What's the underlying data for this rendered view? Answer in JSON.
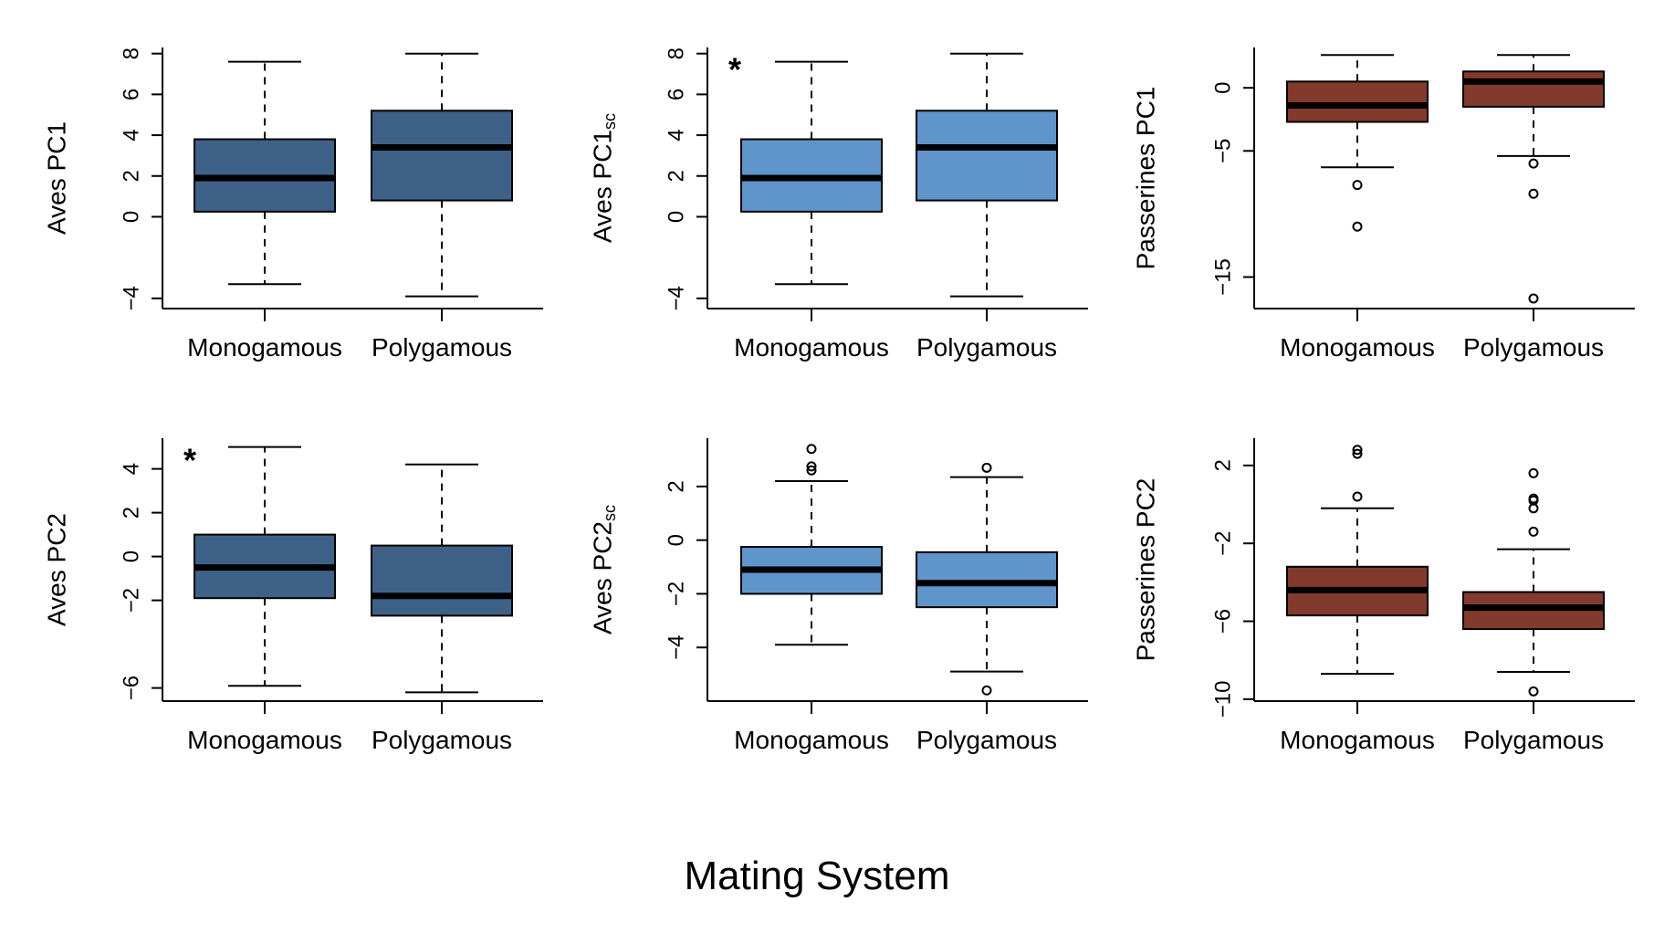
{
  "figure": {
    "xlabel": "Mating System"
  },
  "chart_data": [
    {
      "type": "boxplot",
      "ylabel": "Aves PC1",
      "ylabel_sub": "",
      "significance": "",
      "fill": "#3e6188",
      "ylim": [
        -4.5,
        8.3
      ],
      "yticks": [
        8,
        6,
        4,
        2,
        0,
        -4
      ],
      "categories": [
        "Monogamous",
        "Polygamous"
      ],
      "boxes": [
        {
          "whisker_low": -3.3,
          "q1": 0.25,
          "median": 1.9,
          "q3": 3.8,
          "whisker_high": 7.6,
          "outliers": []
        },
        {
          "whisker_low": -3.9,
          "q1": 0.8,
          "median": 3.4,
          "q3": 5.2,
          "whisker_high": 8.0,
          "outliers": []
        }
      ]
    },
    {
      "type": "boxplot",
      "ylabel": "Aves PC1",
      "ylabel_sub": "sc",
      "significance": "*",
      "fill": "#5f95cb",
      "ylim": [
        -4.5,
        8.3
      ],
      "yticks": [
        8,
        6,
        4,
        2,
        0,
        -4
      ],
      "categories": [
        "Monogamous",
        "Polygamous"
      ],
      "boxes": [
        {
          "whisker_low": -3.3,
          "q1": 0.25,
          "median": 1.9,
          "q3": 3.8,
          "whisker_high": 7.6,
          "outliers": []
        },
        {
          "whisker_low": -3.9,
          "q1": 0.8,
          "median": 3.4,
          "q3": 5.2,
          "whisker_high": 8.0,
          "outliers": []
        }
      ]
    },
    {
      "type": "boxplot",
      "ylabel": "Passerines PC1",
      "ylabel_sub": "",
      "significance": "",
      "fill": "#823a2c",
      "ylim": [
        -17.5,
        3.2
      ],
      "yticks": [
        0,
        -5,
        -15
      ],
      "categories": [
        "Monogamous",
        "Polygamous"
      ],
      "boxes": [
        {
          "whisker_low": -6.3,
          "q1": -2.7,
          "median": -1.4,
          "q3": 0.5,
          "whisker_high": 2.6,
          "outliers": [
            -7.7,
            -11.0
          ]
        },
        {
          "whisker_low": -5.4,
          "q1": -1.5,
          "median": 0.5,
          "q3": 1.3,
          "whisker_high": 2.6,
          "outliers": [
            -6.0,
            -8.4,
            -16.7
          ]
        }
      ]
    },
    {
      "type": "boxplot",
      "ylabel": "Aves PC2",
      "ylabel_sub": "",
      "significance": "*",
      "fill": "#3e6188",
      "ylim": [
        -6.6,
        5.4
      ],
      "yticks": [
        4,
        2,
        0,
        -2,
        -6
      ],
      "categories": [
        "Monogamous",
        "Polygamous"
      ],
      "boxes": [
        {
          "whisker_low": -5.9,
          "q1": -1.9,
          "median": -0.5,
          "q3": 1.0,
          "whisker_high": 5.0,
          "outliers": []
        },
        {
          "whisker_low": -6.2,
          "q1": -2.7,
          "median": -1.8,
          "q3": 0.5,
          "whisker_high": 4.2,
          "outliers": []
        }
      ]
    },
    {
      "type": "boxplot",
      "ylabel": "Aves PC2",
      "ylabel_sub": "sc",
      "significance": "",
      "fill": "#5f95cb",
      "ylim": [
        -6.0,
        3.8
      ],
      "yticks": [
        2,
        0,
        -2,
        -4
      ],
      "categories": [
        "Monogamous",
        "Polygamous"
      ],
      "boxes": [
        {
          "whisker_low": -3.9,
          "q1": -2.0,
          "median": -1.1,
          "q3": -0.25,
          "whisker_high": 2.2,
          "outliers": [
            2.6,
            2.75,
            3.4
          ]
        },
        {
          "whisker_low": -4.9,
          "q1": -2.5,
          "median": -1.6,
          "q3": -0.45,
          "whisker_high": 2.35,
          "outliers": [
            2.7,
            -5.6
          ]
        }
      ]
    },
    {
      "type": "boxplot",
      "ylabel": "Passerines PC2",
      "ylabel_sub": "",
      "significance": "",
      "fill": "#823a2c",
      "ylim": [
        -10.1,
        3.4
      ],
      "yticks": [
        2,
        -2,
        -6,
        -10
      ],
      "categories": [
        "Monogamous",
        "Polygamous"
      ],
      "boxes": [
        {
          "whisker_low": -8.7,
          "q1": -5.7,
          "median": -4.4,
          "q3": -3.2,
          "whisker_high": -0.2,
          "outliers": [
            0.4,
            2.6,
            2.8
          ]
        },
        {
          "whisker_low": -8.6,
          "q1": -6.4,
          "median": -5.3,
          "q3": -4.5,
          "whisker_high": -2.3,
          "outliers": [
            -9.6,
            -1.4,
            -0.2,
            0.2,
            0.3,
            1.6
          ]
        }
      ]
    }
  ]
}
